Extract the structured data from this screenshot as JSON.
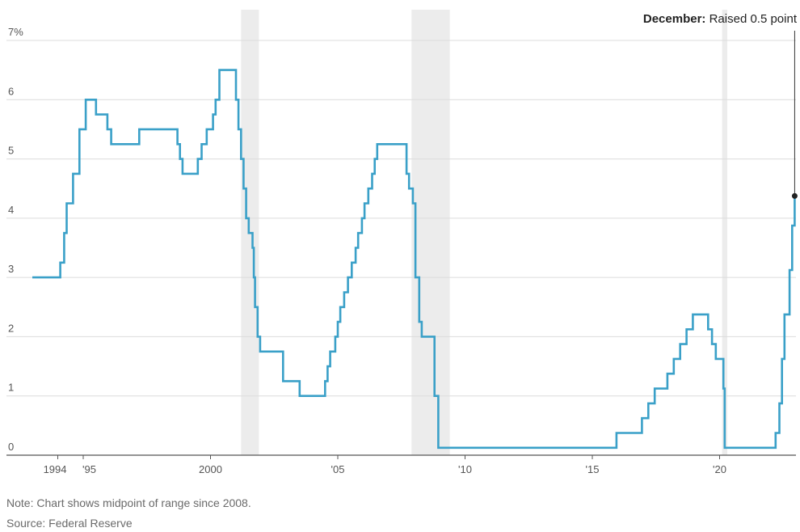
{
  "chart_data": {
    "type": "line",
    "step": true,
    "title": "",
    "xlabel": "",
    "ylabel": "",
    "y_unit_suffix": "%",
    "xlim": [
      1993.0,
      2023.0
    ],
    "ylim": [
      0,
      7
    ],
    "y_ticks": [
      0,
      1,
      2,
      3,
      4,
      5,
      6,
      7
    ],
    "y_tick_labels": [
      "0",
      "1",
      "2",
      "3",
      "4",
      "5",
      "6",
      "7%"
    ],
    "x_ticks": [
      1994,
      1995,
      2000,
      2005,
      2010,
      2015,
      2020
    ],
    "x_tick_labels": [
      "1994",
      "'95",
      "2000",
      "'05",
      "'10",
      "'15",
      "'20"
    ],
    "grid": "horizontal",
    "line_color": "#3aa0c8",
    "shading_color": "#ececec",
    "recessions": [
      [
        2001.2,
        2001.9
      ],
      [
        2007.9,
        2009.4
      ],
      [
        2020.1,
        2020.3
      ]
    ],
    "series": [
      {
        "points": [
          [
            1993.0,
            3.0
          ],
          [
            1994.1,
            3.25
          ],
          [
            1994.25,
            3.75
          ],
          [
            1994.35,
            4.25
          ],
          [
            1994.6,
            4.75
          ],
          [
            1994.85,
            5.5
          ],
          [
            1995.1,
            6.0
          ],
          [
            1995.5,
            5.75
          ],
          [
            1995.95,
            5.5
          ],
          [
            1996.1,
            5.25
          ],
          [
            1997.2,
            5.5
          ],
          [
            1998.7,
            5.25
          ],
          [
            1998.8,
            5.0
          ],
          [
            1998.9,
            4.75
          ],
          [
            1999.5,
            5.0
          ],
          [
            1999.65,
            5.25
          ],
          [
            1999.85,
            5.5
          ],
          [
            2000.1,
            5.75
          ],
          [
            2000.2,
            6.0
          ],
          [
            2000.35,
            6.5
          ],
          [
            2001.0,
            6.0
          ],
          [
            2001.1,
            5.5
          ],
          [
            2001.2,
            5.0
          ],
          [
            2001.3,
            4.5
          ],
          [
            2001.4,
            4.0
          ],
          [
            2001.5,
            3.75
          ],
          [
            2001.65,
            3.5
          ],
          [
            2001.7,
            3.0
          ],
          [
            2001.75,
            2.5
          ],
          [
            2001.85,
            2.0
          ],
          [
            2001.95,
            1.75
          ],
          [
            2002.85,
            1.25
          ],
          [
            2003.5,
            1.0
          ],
          [
            2004.5,
            1.25
          ],
          [
            2004.6,
            1.5
          ],
          [
            2004.7,
            1.75
          ],
          [
            2004.9,
            2.0
          ],
          [
            2005.0,
            2.25
          ],
          [
            2005.1,
            2.5
          ],
          [
            2005.25,
            2.75
          ],
          [
            2005.4,
            3.0
          ],
          [
            2005.55,
            3.25
          ],
          [
            2005.7,
            3.5
          ],
          [
            2005.8,
            3.75
          ],
          [
            2005.95,
            4.0
          ],
          [
            2006.05,
            4.25
          ],
          [
            2006.2,
            4.5
          ],
          [
            2006.35,
            4.75
          ],
          [
            2006.45,
            5.0
          ],
          [
            2006.55,
            5.25
          ],
          [
            2007.7,
            4.75
          ],
          [
            2007.8,
            4.5
          ],
          [
            2007.95,
            4.25
          ],
          [
            2008.05,
            3.0
          ],
          [
            2008.2,
            2.25
          ],
          [
            2008.3,
            2.0
          ],
          [
            2008.8,
            1.0
          ],
          [
            2008.95,
            0.125
          ],
          [
            2015.95,
            0.375
          ],
          [
            2016.95,
            0.625
          ],
          [
            2017.2,
            0.875
          ],
          [
            2017.45,
            1.125
          ],
          [
            2017.95,
            1.375
          ],
          [
            2018.2,
            1.625
          ],
          [
            2018.45,
            1.875
          ],
          [
            2018.7,
            2.125
          ],
          [
            2018.95,
            2.375
          ],
          [
            2019.55,
            2.125
          ],
          [
            2019.7,
            1.875
          ],
          [
            2019.85,
            1.625
          ],
          [
            2020.15,
            1.125
          ],
          [
            2020.2,
            0.125
          ],
          [
            2022.2,
            0.375
          ],
          [
            2022.35,
            0.875
          ],
          [
            2022.45,
            1.625
          ],
          [
            2022.55,
            2.375
          ],
          [
            2022.75,
            3.125
          ],
          [
            2022.85,
            3.875
          ],
          [
            2022.95,
            4.375
          ],
          [
            2023.0,
            4.375
          ]
        ]
      }
    ],
    "annotation": {
      "label_bold": "December:",
      "label_text": " Raised 0.5 point",
      "x": 2022.95,
      "y": 4.375
    }
  },
  "notes": {
    "note": "Note: Chart shows midpoint of range since 2008.",
    "source": "Source: Federal Reserve"
  }
}
